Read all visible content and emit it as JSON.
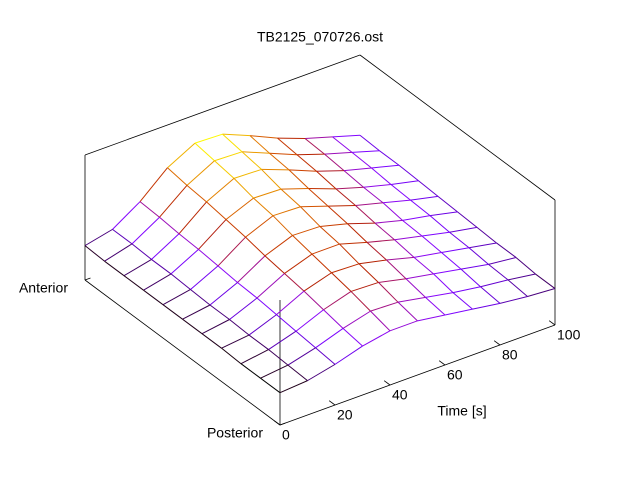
{
  "chart_data": {
    "type": "surface",
    "title": "TB2125_070726.ost",
    "xlabel": "Time [s]",
    "x": [
      0,
      10,
      20,
      30,
      40,
      50,
      60,
      70,
      80,
      90,
      100
    ],
    "y": [
      0,
      0.1,
      0.2,
      0.3,
      0.4,
      0.5,
      0.6,
      0.7,
      0.8,
      0.9,
      1
    ],
    "z": [
      [
        0.31,
        0.33,
        0.39,
        0.47,
        0.52,
        0.52,
        0.48,
        0.44,
        0.4,
        0.37,
        0.35
      ],
      [
        0.31,
        0.34,
        0.41,
        0.5,
        0.57,
        0.56,
        0.51,
        0.46,
        0.42,
        0.39,
        0.35
      ],
      [
        0.31,
        0.35,
        0.43,
        0.54,
        0.62,
        0.61,
        0.55,
        0.5,
        0.45,
        0.4,
        0.37
      ],
      [
        0.32,
        0.35,
        0.45,
        0.58,
        0.66,
        0.65,
        0.59,
        0.52,
        0.47,
        0.42,
        0.37
      ],
      [
        0.32,
        0.36,
        0.47,
        0.61,
        0.7,
        0.7,
        0.62,
        0.55,
        0.49,
        0.43,
        0.38
      ],
      [
        0.32,
        0.36,
        0.48,
        0.64,
        0.74,
        0.73,
        0.66,
        0.57,
        0.5,
        0.45,
        0.39
      ],
      [
        0.32,
        0.37,
        0.5,
        0.68,
        0.79,
        0.78,
        0.69,
        0.6,
        0.53,
        0.46,
        0.4
      ],
      [
        0.32,
        0.38,
        0.52,
        0.71,
        0.82,
        0.81,
        0.72,
        0.62,
        0.54,
        0.47,
        0.41
      ],
      [
        0.32,
        0.38,
        0.53,
        0.74,
        0.87,
        0.86,
        0.76,
        0.65,
        0.56,
        0.49,
        0.42
      ],
      [
        0.32,
        0.39,
        0.55,
        0.76,
        0.9,
        0.89,
        0.78,
        0.67,
        0.58,
        0.5,
        0.42
      ],
      [
        0.33,
        0.39,
        0.56,
        0.79,
        0.93,
        0.92,
        0.81,
        0.69,
        0.59,
        0.51,
        0.43
      ]
    ],
    "xlim": [
      0,
      100
    ],
    "xticks": [
      0,
      20,
      40,
      60,
      80,
      100
    ],
    "ylim": [
      0,
      1
    ],
    "yticks": [
      {
        "value": 0,
        "label": "Posterior"
      },
      {
        "value": 1,
        "label": "Anterior"
      }
    ],
    "zlim": [
      0,
      1.2
    ],
    "colormap": "gnuplot"
  }
}
